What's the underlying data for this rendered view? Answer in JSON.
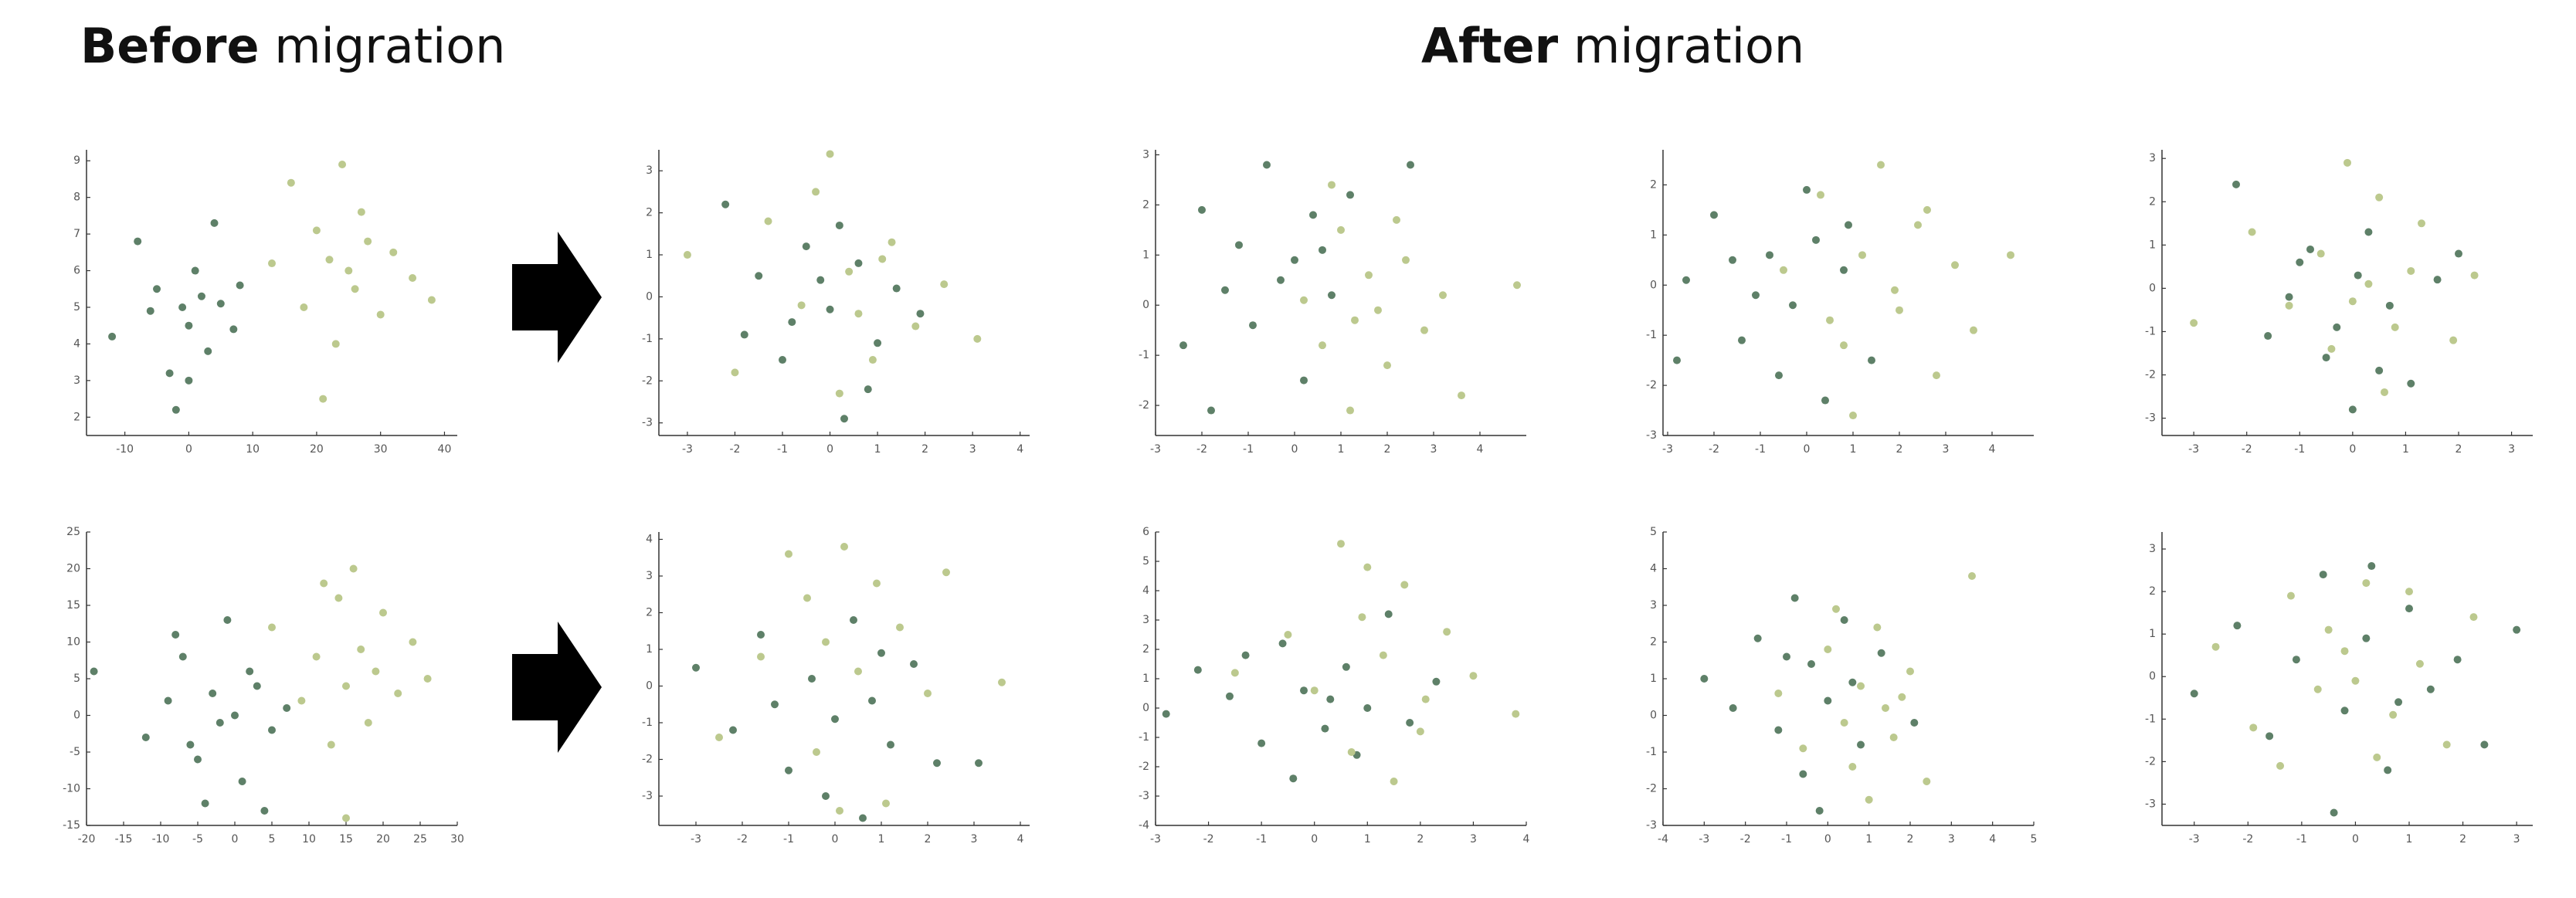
{
  "headings": [
    {
      "emphasis": "Before",
      "text": "migration"
    },
    {
      "emphasis": "After",
      "text": "migration"
    }
  ],
  "chart_data": [
    {
      "type": "scatter",
      "xlim": [
        -16,
        42
      ],
      "ylim": [
        1.5,
        9.3
      ],
      "xticks": [
        -10,
        0,
        10,
        20,
        30,
        40
      ],
      "yticks": [
        2,
        3,
        4,
        5,
        6,
        7,
        8,
        9
      ],
      "series": [
        {
          "color": "#5e8068",
          "x": [
            -12,
            -8,
            -5,
            -3,
            -1,
            0,
            1,
            2,
            3,
            5,
            7,
            -6,
            -2,
            4,
            8,
            0
          ],
          "values": [
            4.2,
            6.8,
            5.5,
            3.2,
            5.0,
            4.5,
            6.0,
            5.3,
            3.8,
            5.1,
            4.4,
            4.9,
            2.2,
            7.3,
            5.6,
            3.0
          ]
        },
        {
          "color": "#bcc98e",
          "x": [
            13,
            16,
            18,
            20,
            22,
            23,
            24,
            25,
            26,
            27,
            28,
            30,
            32,
            35,
            21,
            38
          ],
          "values": [
            6.2,
            8.4,
            5.0,
            7.1,
            6.3,
            4.0,
            8.9,
            6.0,
            5.5,
            7.6,
            6.8,
            4.8,
            6.5,
            5.8,
            2.5,
            5.2
          ]
        }
      ]
    },
    {
      "type": "scatter",
      "xlim": [
        -3.6,
        4.2
      ],
      "ylim": [
        -3.3,
        3.5
      ],
      "xticks": [
        -3,
        -2,
        -1,
        0,
        1,
        2,
        3,
        4
      ],
      "yticks": [
        -3,
        -2,
        -1,
        0,
        1,
        2,
        3
      ],
      "series": [
        {
          "color": "#5e8068",
          "x": [
            -2.2,
            -1.5,
            -1,
            -0.5,
            0,
            0.3,
            0.6,
            1,
            1.4,
            -0.8,
            0.2,
            -1.8,
            1.9,
            -0.2,
            0.8
          ],
          "values": [
            2.2,
            0.5,
            -1.5,
            1.2,
            -0.3,
            -2.9,
            0.8,
            -1.1,
            0.2,
            -0.6,
            1.7,
            -0.9,
            -0.4,
            0.4,
            -2.2
          ]
        },
        {
          "color": "#bcc98e",
          "x": [
            -3,
            -2,
            -1.3,
            -0.6,
            0,
            0.4,
            0.9,
            1.3,
            1.8,
            2.4,
            3.1,
            0.2,
            -0.3,
            1.1,
            0.6
          ],
          "values": [
            1.0,
            -1.8,
            1.8,
            -0.2,
            3.4,
            0.6,
            -1.5,
            1.3,
            -0.7,
            0.3,
            -1.0,
            -2.3,
            2.5,
            0.9,
            -0.4
          ]
        }
      ]
    },
    {
      "type": "scatter",
      "xlim": [
        -3,
        5
      ],
      "ylim": [
        -2.6,
        3.1
      ],
      "xticks": [
        -3,
        -2,
        -1,
        0,
        1,
        2,
        3,
        4
      ],
      "yticks": [
        -2,
        -1,
        0,
        1,
        2,
        3
      ],
      "series": [
        {
          "color": "#5e8068",
          "x": [
            -2.4,
            -1.8,
            -1.2,
            -0.6,
            0,
            0.4,
            0.8,
            -0.9,
            1.2,
            -0.3,
            0.2,
            2.5,
            -1.5,
            0.6,
            -2
          ],
          "values": [
            -0.8,
            -2.1,
            1.2,
            2.8,
            0.9,
            1.8,
            0.2,
            -0.4,
            2.2,
            0.5,
            -1.5,
            2.8,
            0.3,
            1.1,
            1.9
          ]
        },
        {
          "color": "#bcc98e",
          "x": [
            0.2,
            0.6,
            1,
            1.3,
            1.6,
            2,
            2.4,
            2.8,
            3.2,
            3.6,
            1.2,
            0.8,
            2.2,
            1.8,
            4.8
          ],
          "values": [
            0.1,
            -0.8,
            1.5,
            -0.3,
            0.6,
            -1.2,
            0.9,
            -0.5,
            0.2,
            -1.8,
            -2.1,
            2.4,
            1.7,
            -0.1,
            0.4
          ]
        }
      ]
    },
    {
      "type": "scatter",
      "xlim": [
        -3.1,
        4.9
      ],
      "ylim": [
        -3,
        2.7
      ],
      "xticks": [
        -3,
        -2,
        -1,
        0,
        1,
        2,
        3,
        4
      ],
      "yticks": [
        -3,
        -2,
        -1,
        0,
        1,
        2
      ],
      "series": [
        {
          "color": "#5e8068",
          "x": [
            -2.6,
            -2,
            -1.4,
            -0.8,
            -0.3,
            0,
            0.4,
            0.8,
            -1.1,
            0.2,
            1.4,
            -0.6,
            -2.8,
            0.9,
            -1.6
          ],
          "values": [
            0.1,
            1.4,
            -1.1,
            0.6,
            -0.4,
            1.9,
            -2.3,
            0.3,
            -0.2,
            0.9,
            -1.5,
            -1.8,
            -1.5,
            1.2,
            0.5
          ]
        },
        {
          "color": "#bcc98e",
          "x": [
            -0.5,
            0.3,
            0.8,
            1.2,
            1.6,
            2,
            2.4,
            2.8,
            3.2,
            3.6,
            4.4,
            1,
            1.9,
            0.5,
            2.6
          ],
          "values": [
            0.3,
            1.8,
            -1.2,
            0.6,
            2.4,
            -0.5,
            1.2,
            -1.8,
            0.4,
            -0.9,
            0.6,
            -2.6,
            -0.1,
            -0.7,
            1.5
          ]
        }
      ]
    },
    {
      "type": "scatter",
      "xlim": [
        -3.6,
        3.4
      ],
      "ylim": [
        -3.4,
        3.2
      ],
      "xticks": [
        -3,
        -2,
        -1,
        0,
        1,
        2,
        3
      ],
      "yticks": [
        -3,
        -2,
        -1,
        0,
        1,
        2,
        3
      ],
      "series": [
        {
          "color": "#5e8068",
          "x": [
            -2.2,
            -1.6,
            -1,
            -0.5,
            0,
            0.3,
            0.7,
            1.1,
            1.6,
            -0.8,
            0.5,
            -1.2,
            2,
            0.1,
            -0.3
          ],
          "values": [
            2.4,
            -1.1,
            0.6,
            -1.6,
            -2.8,
            1.3,
            -0.4,
            -2.2,
            0.2,
            0.9,
            -1.9,
            -0.2,
            0.8,
            0.3,
            -0.9
          ]
        },
        {
          "color": "#bcc98e",
          "x": [
            -3,
            -1.9,
            -1.2,
            -0.6,
            -0.1,
            0.3,
            0.8,
            1.3,
            1.9,
            2.3,
            0.5,
            -0.4,
            1.1,
            0,
            0.6
          ],
          "values": [
            -0.8,
            1.3,
            -0.4,
            0.8,
            2.9,
            0.1,
            -0.9,
            1.5,
            -1.2,
            0.3,
            2.1,
            -1.4,
            0.4,
            -0.3,
            -2.4
          ]
        }
      ]
    },
    {
      "type": "scatter",
      "xlim": [
        -20,
        30
      ],
      "ylim": [
        -15,
        25
      ],
      "xticks": [
        -20,
        -15,
        -10,
        -5,
        0,
        5,
        10,
        15,
        20,
        25,
        30
      ],
      "yticks": [
        -15,
        -10,
        -5,
        0,
        5,
        10,
        15,
        20,
        25
      ],
      "series": [
        {
          "color": "#5e8068",
          "x": [
            -19,
            -12,
            -9,
            -7,
            -5,
            -3,
            -2,
            -1,
            0,
            1,
            3,
            5,
            7,
            -4,
            2,
            -6,
            -8,
            4
          ],
          "values": [
            6,
            -3,
            2,
            8,
            -6,
            3,
            -1,
            13,
            0,
            -9,
            4,
            -2,
            1,
            -12,
            6,
            -4,
            11,
            -13
          ]
        },
        {
          "color": "#bcc98e",
          "x": [
            5,
            9,
            11,
            13,
            14,
            15,
            16,
            17,
            18,
            19,
            20,
            22,
            24,
            26,
            15,
            12
          ],
          "values": [
            12,
            2,
            8,
            -4,
            16,
            4,
            20,
            9,
            -1,
            6,
            14,
            3,
            10,
            5,
            -14,
            18
          ]
        }
      ]
    },
    {
      "type": "scatter",
      "xlim": [
        -3.8,
        4.2
      ],
      "ylim": [
        -3.8,
        4.2
      ],
      "xticks": [
        -3,
        -2,
        -1,
        0,
        1,
        2,
        3,
        4
      ],
      "yticks": [
        -3,
        -2,
        -1,
        0,
        1,
        2,
        3,
        4
      ],
      "series": [
        {
          "color": "#5e8068",
          "x": [
            -3,
            -2.2,
            -1.6,
            -1,
            -0.5,
            0,
            0.4,
            0.8,
            1.2,
            1.7,
            2.2,
            3.1,
            -0.2,
            0.6,
            1,
            -1.3
          ],
          "values": [
            0.5,
            -1.2,
            1.4,
            -2.3,
            0.2,
            -0.9,
            1.8,
            -0.4,
            -1.6,
            0.6,
            -2.1,
            -2.1,
            -3.0,
            -3.6,
            0.9,
            -0.5
          ]
        },
        {
          "color": "#bcc98e",
          "x": [
            -2.5,
            -1.6,
            -1,
            -0.6,
            -0.2,
            0.2,
            0.5,
            0.9,
            1.4,
            2,
            2.4,
            3.6,
            0.1,
            -0.4,
            1.1
          ],
          "values": [
            -1.4,
            0.8,
            3.6,
            2.4,
            1.2,
            3.8,
            0.4,
            2.8,
            1.6,
            -0.2,
            3.1,
            0.1,
            -3.4,
            -1.8,
            -3.2
          ]
        }
      ]
    },
    {
      "type": "scatter",
      "xlim": [
        -3,
        4
      ],
      "ylim": [
        -4,
        6
      ],
      "xticks": [
        -3,
        -2,
        -1,
        0,
        1,
        2,
        3,
        4
      ],
      "yticks": [
        -4,
        -3,
        -2,
        -1,
        0,
        1,
        2,
        3,
        4,
        5,
        6
      ],
      "series": [
        {
          "color": "#5e8068",
          "x": [
            -2.8,
            -2.2,
            -1.6,
            -1,
            -0.6,
            -0.2,
            0.2,
            0.6,
            1,
            1.4,
            -0.4,
            0.8,
            -1.3,
            0.3,
            1.8,
            2.3
          ],
          "values": [
            -0.2,
            1.3,
            0.4,
            -1.2,
            2.2,
            0.6,
            -0.7,
            1.4,
            0,
            3.2,
            -2.4,
            -1.6,
            1.8,
            0.3,
            -0.5,
            0.9
          ]
        },
        {
          "color": "#bcc98e",
          "x": [
            -1.5,
            -0.5,
            0,
            0.5,
            0.9,
            1.3,
            1.7,
            2.1,
            2.5,
            3,
            0.7,
            1.5,
            1,
            2,
            3.8
          ],
          "values": [
            1.2,
            2.5,
            0.6,
            5.6,
            3.1,
            1.8,
            4.2,
            0.3,
            2.6,
            1.1,
            -1.5,
            -2.5,
            4.8,
            -0.8,
            -0.2
          ]
        }
      ]
    },
    {
      "type": "scatter",
      "xlim": [
        -4,
        5
      ],
      "ylim": [
        -3,
        5
      ],
      "xticks": [
        -4,
        -3,
        -2,
        -1,
        0,
        1,
        2,
        3,
        4,
        5
      ],
      "yticks": [
        -3,
        -2,
        -1,
        0,
        1,
        2,
        3,
        4,
        5
      ],
      "series": [
        {
          "color": "#5e8068",
          "x": [
            -3,
            -2.3,
            -1.7,
            -1.2,
            -0.8,
            -0.4,
            0,
            0.4,
            0.8,
            -1,
            -0.2,
            0.6,
            1.3,
            -0.6,
            2.1
          ],
          "values": [
            1,
            0.2,
            2.1,
            -0.4,
            3.2,
            1.4,
            0.4,
            2.6,
            -0.8,
            1.6,
            -2.6,
            0.9,
            1.7,
            -1.6,
            -0.2
          ]
        },
        {
          "color": "#bcc98e",
          "x": [
            -1.2,
            -0.6,
            0,
            0.4,
            0.8,
            1.2,
            1.6,
            2,
            2.4,
            1,
            0.2,
            1.4,
            3.5,
            0.6,
            1.8
          ],
          "values": [
            0.6,
            -0.9,
            1.8,
            -0.2,
            0.8,
            2.4,
            -0.6,
            1.2,
            -1.8,
            -2.3,
            2.9,
            0.2,
            3.8,
            -1.4,
            0.5
          ]
        }
      ]
    },
    {
      "type": "scatter",
      "xlim": [
        -3.6,
        3.3
      ],
      "ylim": [
        -3.5,
        3.4
      ],
      "xticks": [
        -3,
        -2,
        -1,
        0,
        1,
        2,
        3
      ],
      "yticks": [
        -3,
        -2,
        -1,
        0,
        1,
        2,
        3
      ],
      "series": [
        {
          "color": "#5e8068",
          "x": [
            -3,
            -2.2,
            -1.6,
            -1.1,
            -0.6,
            -0.2,
            0.2,
            0.6,
            1,
            1.4,
            1.9,
            2.4,
            3,
            -0.4,
            0.3,
            0.8
          ],
          "values": [
            -0.4,
            1.2,
            -1.4,
            0.4,
            2.4,
            -0.8,
            0.9,
            -2.2,
            1.6,
            -0.3,
            0.4,
            -1.6,
            1.1,
            -3.2,
            2.6,
            -0.6
          ]
        },
        {
          "color": "#bcc98e",
          "x": [
            -2.6,
            -1.9,
            -1.2,
            -0.7,
            -0.2,
            0.2,
            0.7,
            1.2,
            1.7,
            2.2,
            0.4,
            -0.5,
            1,
            -1.4,
            0
          ],
          "values": [
            0.7,
            -1.2,
            1.9,
            -0.3,
            0.6,
            2.2,
            -0.9,
            0.3,
            -1.6,
            1.4,
            -1.9,
            1.1,
            2,
            -2.1,
            -0.1
          ]
        }
      ]
    }
  ]
}
